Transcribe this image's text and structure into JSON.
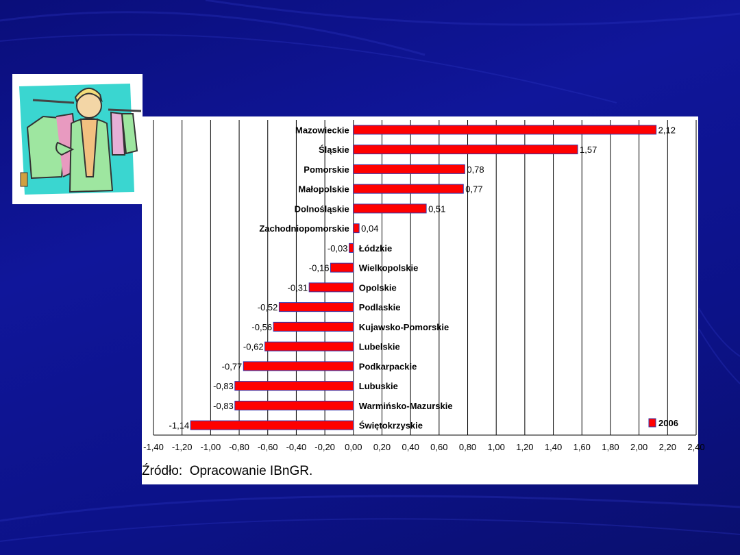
{
  "slide": {
    "source_label": "Źródło:",
    "source_text": "Opracowanie IBnGR."
  },
  "clipart": {
    "icon": "shopper-with-clothes-rack-icon"
  },
  "colors": {
    "background": "#0d1390",
    "bar_fill": "#ff0000",
    "bar_edge": "#3333aa",
    "grid": "#000000"
  },
  "chart_data": {
    "type": "bar",
    "orientation": "horizontal",
    "categories": [
      "Mazowieckie",
      "Śląskie",
      "Pomorskie",
      "Małopolskie",
      "Dolnośląskie",
      "Zachodniopomorskie",
      "Łódzkie",
      "Wielkopolskie",
      "Opolskie",
      "Podlaskie",
      "Kujawsko-Pomorskie",
      "Lubelskie",
      "Podkarpackie",
      "Lubuskie",
      "Warmińsko-Mazurskie",
      "Świętokrzyskie"
    ],
    "series": [
      {
        "name": "2006",
        "values": [
          2.12,
          1.57,
          0.78,
          0.77,
          0.51,
          0.04,
          -0.03,
          -0.16,
          -0.31,
          -0.52,
          -0.56,
          -0.62,
          -0.77,
          -0.83,
          -0.83,
          -1.14
        ],
        "value_labels": [
          "2,12",
          "1,57",
          "0,78",
          "0,77",
          "0,51",
          "0,04",
          "-0,03",
          "-0,16",
          "-0,31",
          "-0,52",
          "-0,56",
          "-0,62",
          "-0,77",
          "-0,83",
          "-0,83",
          "-1,14"
        ]
      }
    ],
    "xlim": [
      -1.4,
      2.4
    ],
    "x_ticks": [
      "-1,40",
      "-1,20",
      "-1,00",
      "-0,80",
      "-0,60",
      "-0,40",
      "-0,20",
      "0,00",
      "0,20",
      "0,40",
      "0,60",
      "0,80",
      "1,00",
      "1,20",
      "1,40",
      "1,60",
      "1,80",
      "2,00",
      "2,20",
      "2,40"
    ],
    "grid": true,
    "legend": "bottom-right"
  }
}
